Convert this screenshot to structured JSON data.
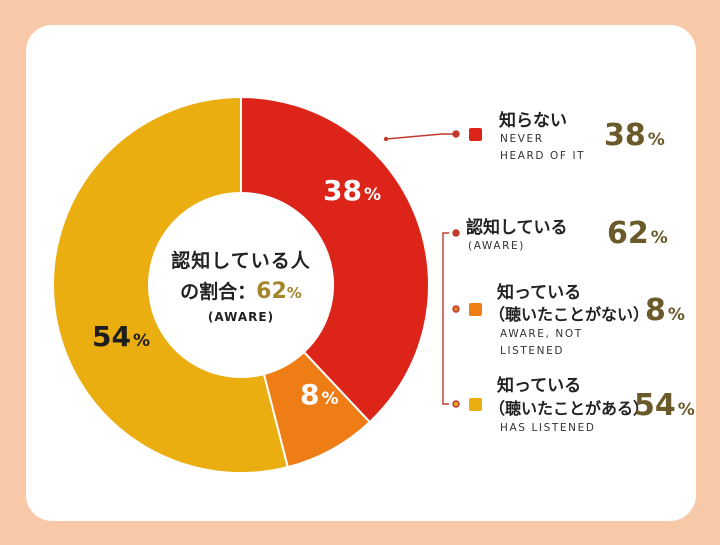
{
  "chart_data": {
    "type": "pie",
    "variant": "donut",
    "slices": [
      {
        "key": "never",
        "value": 38,
        "color": "#dc2418",
        "label": "38%"
      },
      {
        "key": "listened_no",
        "value": 8,
        "color": "#ed7d14",
        "label": "8%"
      },
      {
        "key": "listened_yes",
        "value": 54,
        "color": "#ebae10",
        "label": "54%"
      }
    ],
    "center": {
      "line1": "認知している人",
      "line2_prefix": "の割合：",
      "value": "62",
      "unit": "%",
      "line3": "(AWARE)"
    },
    "slice_labels": {
      "never": {
        "value": "38",
        "unit": "%"
      },
      "listened_no": {
        "value": "8",
        "unit": "%"
      },
      "listened_yes": {
        "value": "54",
        "unit": "%"
      }
    },
    "legend": {
      "never": {
        "jp": "知らない",
        "en": [
          "NEVER",
          "HEARD OF IT"
        ],
        "value": "38",
        "unit": "%",
        "color": "#dc2418"
      },
      "aware": {
        "jp": "認知している",
        "en": [
          "(AWARE)"
        ],
        "value": "62",
        "unit": "%",
        "color": "#dc2418"
      },
      "listened_no": {
        "jp1": "知っている",
        "jp2": "（聴いたことがない）",
        "en": [
          "AWARE, NOT",
          "LISTENED"
        ],
        "value": "8",
        "unit": "%",
        "color": "#ed7d14"
      },
      "listened_yes": {
        "jp1": "知っている",
        "jp2": "（聴いたことがある）",
        "en": [
          "HAS LISTENED"
        ],
        "value": "54",
        "unit": "%",
        "color": "#ebae10"
      }
    }
  }
}
